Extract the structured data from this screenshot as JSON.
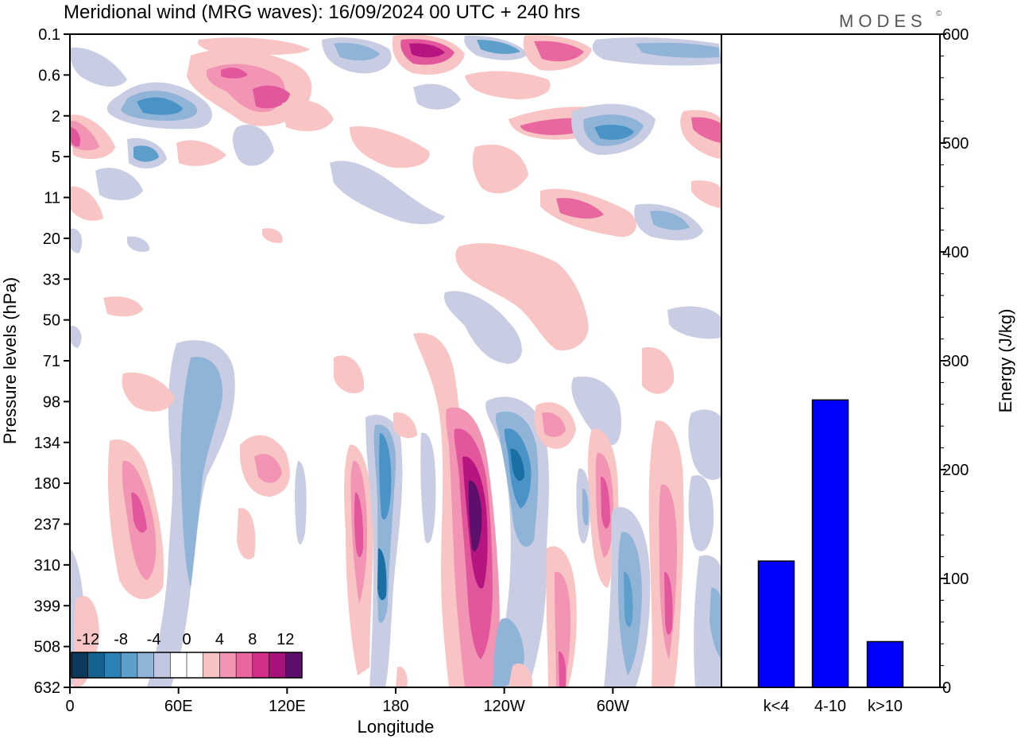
{
  "title": "Meridional wind (MRG waves):  16/09/2024  00 UTC  + 240 hrs",
  "logo_text": "MODES",
  "logo_mark": "©",
  "chart_data": [
    {
      "type": "heatmap",
      "xlabel": "Longitude",
      "ylabel": "Pressure levels (hPa)",
      "x_ticks": [
        "0",
        "60E",
        "120E",
        "180",
        "120W",
        "60W"
      ],
      "x_tick_lon": [
        0,
        60,
        120,
        180,
        240,
        300
      ],
      "xlim": [
        0,
        360
      ],
      "y_ticks": [
        "0.1",
        "0.6",
        "2",
        "5",
        "11",
        "20",
        "33",
        "50",
        "71",
        "98",
        "134",
        "180",
        "237",
        "310",
        "399",
        "508",
        "632"
      ],
      "colorbar": {
        "labels": [
          "-12",
          "-8",
          "-4",
          "0",
          "4",
          "8",
          "12"
        ],
        "levels": [
          -14,
          -12,
          -10,
          -8,
          -6,
          -4,
          -2,
          2,
          4,
          6,
          8,
          10,
          12,
          14
        ],
        "colors": [
          "#0b3a5c",
          "#14628f",
          "#2d82b5",
          "#5b9fca",
          "#8fb4d8",
          "#c0c6e0",
          "#ffffff",
          "#ffffff",
          "#f6c2c2",
          "#f295b4",
          "#e9679f",
          "#d52f8c",
          "#a5127a",
          "#5c0f6b"
        ]
      },
      "colors": {
        "negative_light": "#c9cde3",
        "negative_mid": "#8fb4d8",
        "negative_strong": "#4a93c6",
        "negative_core": "#1a6fa5",
        "positive_light": "#f8c4c4",
        "positive_mid": "#f295b4",
        "positive_strong": "#e2569b",
        "positive_core": "#b6157f",
        "positive_extreme": "#5c0f6b"
      }
    },
    {
      "type": "bar",
      "categories": [
        "k<4",
        "4-10",
        "k>10"
      ],
      "values": [
        116,
        264,
        42
      ],
      "ylabel": "Energy (J/kg)",
      "ylim": [
        0,
        600
      ],
      "y_ticks": [
        0,
        100,
        200,
        300,
        400,
        500,
        600
      ],
      "bar_color": "#0000ff"
    }
  ]
}
